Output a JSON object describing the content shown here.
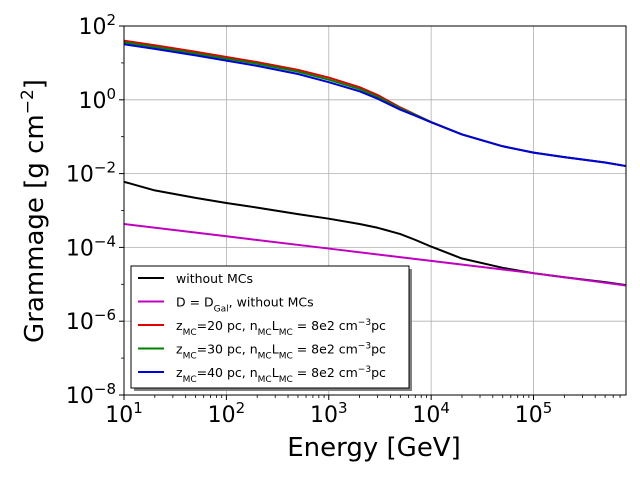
{
  "chart_data": {
    "type": "line",
    "xscale": "log",
    "yscale": "log",
    "xlabel": "Energy [GeV]",
    "ylabel": "Grammage [g cm",
    "ylabel_exponent": "−2",
    "ylabel_close": "]",
    "xlim": [
      10,
      800000
    ],
    "ylim": [
      1e-08,
      100
    ],
    "grid": true,
    "legend_position": "lower-left",
    "x_ticks": [
      {
        "value": 10,
        "base": "10",
        "exp": "1"
      },
      {
        "value": 100,
        "base": "10",
        "exp": "2"
      },
      {
        "value": 1000,
        "base": "10",
        "exp": "3"
      },
      {
        "value": 10000,
        "base": "10",
        "exp": "4"
      },
      {
        "value": 100000,
        "base": "10",
        "exp": "5"
      }
    ],
    "y_ticks": [
      {
        "value": 1e-08,
        "base": "10",
        "exp": "−8"
      },
      {
        "value": 1e-06,
        "base": "10",
        "exp": "−6"
      },
      {
        "value": 0.0001,
        "base": "10",
        "exp": "−4"
      },
      {
        "value": 0.01,
        "base": "10",
        "exp": "−2"
      },
      {
        "value": 1,
        "base": "10",
        "exp": "0"
      },
      {
        "value": 100,
        "base": "10",
        "exp": "2"
      }
    ],
    "series": [
      {
        "name": "without MCs",
        "label_parts": [
          {
            "t": "without MCs"
          }
        ],
        "color": "#000000",
        "x": [
          10,
          20,
          50,
          100,
          200,
          500,
          1000,
          2000,
          3000,
          5000,
          7000,
          10000,
          20000,
          50000,
          100000,
          200000,
          500000,
          800000
        ],
        "y": [
          0.006,
          0.0035,
          0.0022,
          0.0016,
          0.0012,
          0.0008,
          0.0006,
          0.00043,
          0.00034,
          0.00023,
          0.00016,
          0.000105,
          5e-05,
          2.8e-05,
          2e-05,
          1.55e-05,
          1.15e-05,
          9.5e-06
        ]
      },
      {
        "name": "D = D_Gal, without MCs",
        "label_parts": [
          {
            "t": "D = D"
          },
          {
            "t": "Gal",
            "sub": true
          },
          {
            "t": ", without MCs"
          }
        ],
        "color": "#c000c0",
        "x": [
          10,
          100,
          1000,
          10000,
          100000,
          800000
        ],
        "y": [
          0.00043,
          0.0002,
          9.3e-05,
          4.3e-05,
          2e-05,
          9.3e-06
        ]
      },
      {
        "name": "z_MC=20 pc, n_MC L_MC = 8e2 cm^-3 pc",
        "label_parts": [
          {
            "t": "z"
          },
          {
            "t": "MC",
            "sub": true
          },
          {
            "t": "=20 pc, n"
          },
          {
            "t": "MC",
            "sub": true
          },
          {
            "t": "L"
          },
          {
            "t": "MC",
            "sub": true
          },
          {
            "t": " = 8e2 cm"
          },
          {
            "t": "−3",
            "sup": true
          },
          {
            "t": "pc"
          }
        ],
        "color": "#e00000",
        "x": [
          10,
          20,
          50,
          100,
          200,
          500,
          1000,
          2000,
          3000,
          5000,
          7000,
          10000,
          20000,
          50000,
          100000,
          200000,
          500000,
          800000
        ],
        "y": [
          40,
          30,
          20,
          14.5,
          10.5,
          6.5,
          4.0,
          2.2,
          1.35,
          0.62,
          0.4,
          0.25,
          0.115,
          0.055,
          0.037,
          0.028,
          0.02,
          0.016
        ]
      },
      {
        "name": "z_MC=30 pc, n_MC L_MC = 8e2 cm^-3 pc",
        "label_parts": [
          {
            "t": "z"
          },
          {
            "t": "MC",
            "sub": true
          },
          {
            "t": "=30 pc, n"
          },
          {
            "t": "MC",
            "sub": true
          },
          {
            "t": "L"
          },
          {
            "t": "MC",
            "sub": true
          },
          {
            "t": " = 8e2 cm"
          },
          {
            "t": "−3",
            "sup": true
          },
          {
            "t": "pc"
          }
        ],
        "color": "#008000",
        "x": [
          10,
          20,
          50,
          100,
          200,
          500,
          1000,
          2000,
          3000,
          5000,
          7000,
          10000,
          20000,
          50000,
          100000,
          200000,
          500000,
          800000
        ],
        "y": [
          36,
          27,
          18,
          13,
          9.5,
          5.8,
          3.5,
          1.95,
          1.2,
          0.58,
          0.39,
          0.25,
          0.115,
          0.055,
          0.037,
          0.028,
          0.02,
          0.016
        ]
      },
      {
        "name": "z_MC=40 pc, n_MC L_MC = 8e2 cm^-3 pc",
        "label_parts": [
          {
            "t": "z"
          },
          {
            "t": "MC",
            "sub": true
          },
          {
            "t": "=40 pc, n"
          },
          {
            "t": "MC",
            "sub": true
          },
          {
            "t": "L"
          },
          {
            "t": "MC",
            "sub": true
          },
          {
            "t": " = 8e2 cm"
          },
          {
            "t": "−3",
            "sup": true
          },
          {
            "t": "pc"
          }
        ],
        "color": "#0000dd",
        "x": [
          10,
          20,
          50,
          100,
          200,
          500,
          1000,
          2000,
          3000,
          5000,
          7000,
          10000,
          20000,
          50000,
          100000,
          200000,
          500000,
          800000
        ],
        "y": [
          32,
          24,
          16,
          11.5,
          8.3,
          5.0,
          3.0,
          1.7,
          1.07,
          0.54,
          0.37,
          0.245,
          0.115,
          0.055,
          0.037,
          0.028,
          0.02,
          0.016
        ]
      }
    ]
  }
}
